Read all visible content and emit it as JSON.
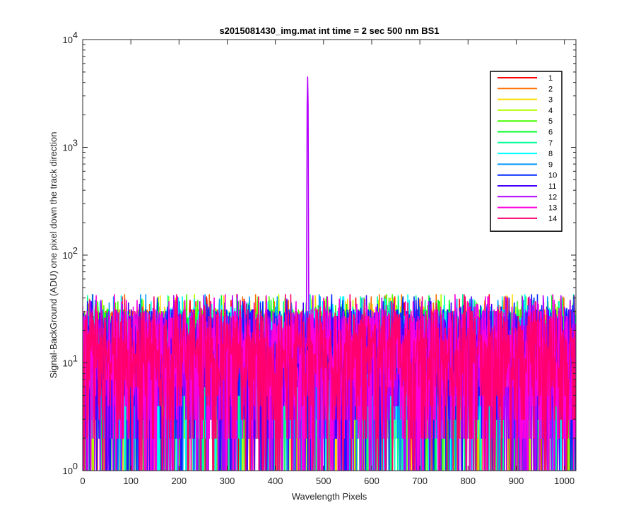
{
  "chart_data": {
    "type": "line",
    "title": "s2015081430_img.mat int time = 2 sec  500 nm BS1",
    "xlabel": "Wavelength Pixels",
    "ylabel": "Signal-BackGround (ADU) one pixel down the track direction",
    "xlim": [
      0,
      1024
    ],
    "ylim": [
      1,
      10000
    ],
    "yscale": "log",
    "xticks": [
      0,
      100,
      200,
      300,
      400,
      500,
      600,
      700,
      800,
      900,
      1000
    ],
    "xtick_labels": [
      "0",
      "100",
      "200",
      "300",
      "400",
      "500",
      "600",
      "700",
      "800",
      "900",
      "1000"
    ],
    "yticks": [
      1,
      10,
      100,
      1000,
      10000
    ],
    "ytick_labels": [
      {
        "base": "10",
        "exp": "0"
      },
      {
        "base": "10",
        "exp": "1"
      },
      {
        "base": "10",
        "exp": "2"
      },
      {
        "base": "10",
        "exp": "3"
      },
      {
        "base": "10",
        "exp": "4"
      }
    ],
    "grid": false,
    "legend_position": "top-right",
    "noise_floor_range": [
      1,
      45
    ],
    "peak": {
      "x": 467,
      "y": 4500,
      "series": "12"
    },
    "series": [
      {
        "name": "1",
        "color": "#ff0000"
      },
      {
        "name": "2",
        "color": "#ff6e00"
      },
      {
        "name": "3",
        "color": "#ffdc00"
      },
      {
        "name": "4",
        "color": "#b4ff00"
      },
      {
        "name": "5",
        "color": "#46ff00"
      },
      {
        "name": "6",
        "color": "#00ff28"
      },
      {
        "name": "7",
        "color": "#00ff96"
      },
      {
        "name": "8",
        "color": "#00ffff"
      },
      {
        "name": "9",
        "color": "#0096ff"
      },
      {
        "name": "10",
        "color": "#0028ff"
      },
      {
        "name": "11",
        "color": "#4600ff"
      },
      {
        "name": "12",
        "color": "#b400ff"
      },
      {
        "name": "13",
        "color": "#ff00dc"
      },
      {
        "name": "14",
        "color": "#ff006e"
      }
    ]
  }
}
